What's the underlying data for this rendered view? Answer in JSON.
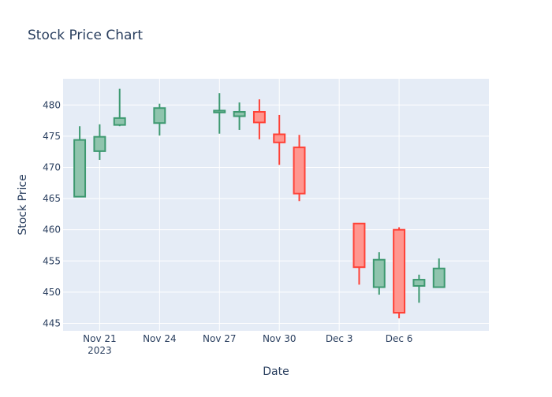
{
  "chart_data": {
    "type": "candlestick",
    "title": "Stock Price Chart",
    "xlabel": "Date",
    "ylabel": "Stock Price",
    "ylim": [
      443.8,
      484.2
    ],
    "xlim": [
      "2023-11-19T04:00",
      "2023-12-10T12:00"
    ],
    "yticks": [
      445,
      450,
      455,
      460,
      465,
      470,
      475,
      480
    ],
    "xticks": [
      {
        "date": "2023-11-21",
        "label": "Nov 21",
        "sublabel": "2023"
      },
      {
        "date": "2023-11-24",
        "label": "Nov 24",
        "sublabel": ""
      },
      {
        "date": "2023-11-27",
        "label": "Nov 27",
        "sublabel": ""
      },
      {
        "date": "2023-11-30",
        "label": "Nov 30",
        "sublabel": ""
      },
      {
        "date": "2023-12-03",
        "label": "Dec 3",
        "sublabel": ""
      },
      {
        "date": "2023-12-06",
        "label": "Dec 6",
        "sublabel": ""
      }
    ],
    "grid": true,
    "increasing_color": "#3D9970",
    "increasing_fill": "#8FC4AD",
    "decreasing_color": "#FF4136",
    "decreasing_fill": "#FF968F",
    "candles": [
      {
        "date": "2023-11-20",
        "open": 465.3,
        "high": 476.6,
        "low": 465.3,
        "close": 474.4
      },
      {
        "date": "2023-11-21",
        "open": 472.6,
        "high": 476.9,
        "low": 471.2,
        "close": 474.9
      },
      {
        "date": "2023-11-22",
        "open": 476.8,
        "high": 482.6,
        "low": 476.6,
        "close": 477.9
      },
      {
        "date": "2023-11-24",
        "open": 477.1,
        "high": 480.2,
        "low": 475.1,
        "close": 479.5
      },
      {
        "date": "2023-11-27",
        "open": 478.8,
        "high": 481.9,
        "low": 475.4,
        "close": 479.1
      },
      {
        "date": "2023-11-28",
        "open": 478.2,
        "high": 480.4,
        "low": 476.0,
        "close": 478.9
      },
      {
        "date": "2023-11-29",
        "open": 478.9,
        "high": 480.9,
        "low": 474.5,
        "close": 477.2
      },
      {
        "date": "2023-11-30",
        "open": 475.3,
        "high": 478.4,
        "low": 470.4,
        "close": 474.0
      },
      {
        "date": "2023-12-01",
        "open": 473.2,
        "high": 475.2,
        "low": 464.6,
        "close": 465.8
      },
      {
        "date": "2023-12-04",
        "open": 461.0,
        "high": 461.0,
        "low": 451.2,
        "close": 454.0
      },
      {
        "date": "2023-12-05",
        "open": 450.8,
        "high": 456.4,
        "low": 449.6,
        "close": 455.2
      },
      {
        "date": "2023-12-06",
        "open": 460.0,
        "high": 460.4,
        "low": 445.8,
        "close": 446.7
      },
      {
        "date": "2023-12-07",
        "open": 451.0,
        "high": 452.8,
        "low": 448.3,
        "close": 452.0
      },
      {
        "date": "2023-12-08",
        "open": 450.8,
        "high": 455.4,
        "low": 450.8,
        "close": 453.8
      }
    ]
  }
}
